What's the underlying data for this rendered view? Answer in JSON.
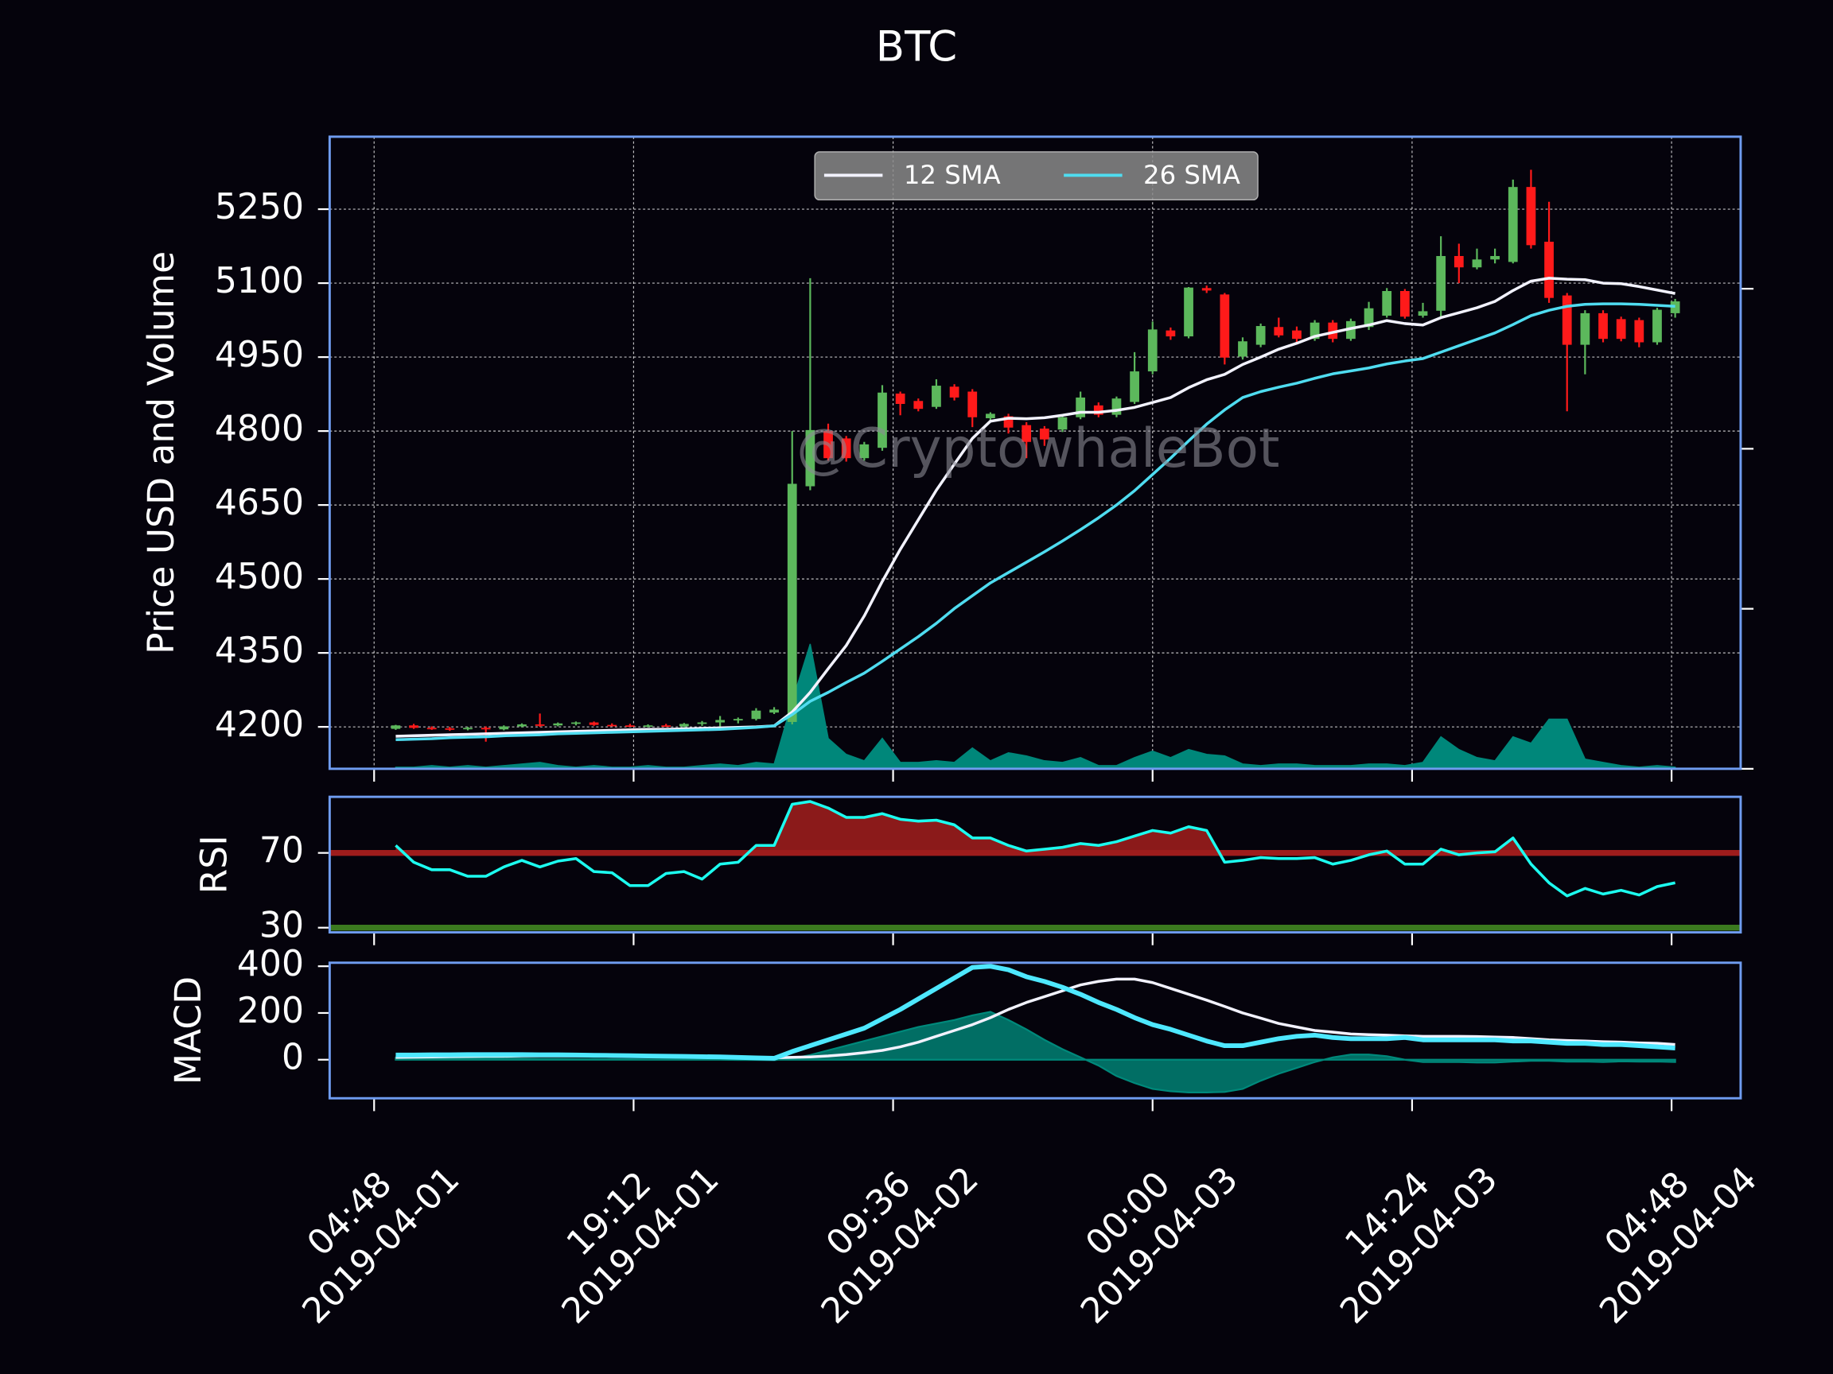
{
  "chart_data": [
    {
      "type": "candlestick",
      "title": "BTC",
      "ylabel": "Price USD and Volume",
      "watermark": "@CryptowhaleBot",
      "x": [
        "2019-04-01 06:00",
        "2019-04-01 07:00",
        "2019-04-01 08:00",
        "2019-04-01 09:00",
        "2019-04-01 10:00",
        "2019-04-01 11:00",
        "2019-04-01 12:00",
        "2019-04-01 13:00",
        "2019-04-01 14:00",
        "2019-04-01 15:00",
        "2019-04-01 16:00",
        "2019-04-01 17:00",
        "2019-04-01 18:00",
        "2019-04-01 19:00",
        "2019-04-01 20:00",
        "2019-04-01 21:00",
        "2019-04-01 22:00",
        "2019-04-01 23:00",
        "2019-04-02 00:00",
        "2019-04-02 01:00",
        "2019-04-02 02:00",
        "2019-04-02 03:00",
        "2019-04-02 04:00",
        "2019-04-02 05:00",
        "2019-04-02 06:00",
        "2019-04-02 07:00",
        "2019-04-02 08:00",
        "2019-04-02 09:00",
        "2019-04-02 10:00",
        "2019-04-02 11:00",
        "2019-04-02 12:00",
        "2019-04-02 13:00",
        "2019-04-02 14:00",
        "2019-04-02 15:00",
        "2019-04-02 16:00",
        "2019-04-02 17:00",
        "2019-04-02 18:00",
        "2019-04-02 19:00",
        "2019-04-02 20:00",
        "2019-04-02 21:00",
        "2019-04-02 22:00",
        "2019-04-02 23:00",
        "2019-04-03 00:00",
        "2019-04-03 01:00",
        "2019-04-03 02:00",
        "2019-04-03 03:00",
        "2019-04-03 04:00",
        "2019-04-03 05:00",
        "2019-04-03 06:00",
        "2019-04-03 07:00",
        "2019-04-03 08:00",
        "2019-04-03 09:00",
        "2019-04-03 10:00",
        "2019-04-03 11:00",
        "2019-04-03 12:00",
        "2019-04-03 13:00",
        "2019-04-03 14:00",
        "2019-04-03 15:00",
        "2019-04-03 16:00",
        "2019-04-03 17:00",
        "2019-04-03 18:00",
        "2019-04-03 19:00",
        "2019-04-03 20:00",
        "2019-04-03 21:00",
        "2019-04-03 22:00",
        "2019-04-03 23:00",
        "2019-04-04 00:00",
        "2019-04-04 01:00",
        "2019-04-04 02:00",
        "2019-04-04 03:00",
        "2019-04-04 04:00",
        "2019-04-04 05:00"
      ],
      "open": [
        4196,
        4203,
        4198,
        4197,
        4196,
        4198,
        4195,
        4201,
        4205,
        4203,
        4207,
        4209,
        4204,
        4203,
        4202,
        4203,
        4201,
        4206,
        4209,
        4214,
        4216,
        4229,
        4210,
        4688,
        4800,
        4785,
        4745,
        4766,
        4876,
        4861,
        4849,
        4890,
        4880,
        4826,
        4830,
        4812,
        4805,
        4803,
        4828,
        4852,
        4833,
        4859,
        4921,
        5004,
        4992,
        5090,
        5077,
        4951,
        4975,
        5011,
        5004,
        4987,
        5020,
        4987,
        5011,
        5034,
        5084,
        5034,
        5044,
        5155,
        5132,
        5148,
        5143,
        5295,
        5184,
        5075,
        4975,
        5039,
        5027,
        5025,
        4980,
        5039
      ],
      "high": [
        4204,
        4206,
        4201,
        4200,
        4200,
        4201,
        4203,
        4207,
        4227,
        4209,
        4211,
        4211,
        4207,
        4206,
        4205,
        4206,
        4208,
        4212,
        4222,
        4219,
        4238,
        4240,
        4800,
        5110,
        4815,
        4790,
        4778,
        4893,
        4880,
        4866,
        4905,
        4895,
        4885,
        4838,
        4835,
        4818,
        4810,
        4832,
        4880,
        4858,
        4870,
        4960,
        5022,
        5010,
        5092,
        5095,
        5080,
        4990,
        5018,
        5030,
        5012,
        5025,
        5025,
        5028,
        5062,
        5090,
        5088,
        5060,
        5195,
        5180,
        5170,
        5170,
        5310,
        5330,
        5265,
        5080,
        5045,
        5045,
        5032,
        5030,
        5050,
        5068
      ],
      "low": [
        4194,
        4196,
        4194,
        4192,
        4193,
        4170,
        4193,
        4199,
        4200,
        4201,
        4203,
        4202,
        4201,
        4200,
        4199,
        4200,
        4199,
        4202,
        4200,
        4207,
        4213,
        4226,
        4205,
        4680,
        4740,
        4738,
        4740,
        4760,
        4832,
        4840,
        4845,
        4862,
        4808,
        4820,
        4795,
        4745,
        4770,
        4798,
        4824,
        4828,
        4828,
        4855,
        4915,
        4985,
        4988,
        5080,
        4935,
        4945,
        4970,
        4990,
        4980,
        4983,
        4980,
        4983,
        5005,
        5030,
        5028,
        5030,
        5030,
        5100,
        5128,
        5140,
        5140,
        5170,
        5060,
        4840,
        4915,
        4980,
        4982,
        4970,
        4975,
        5030
      ],
      "close": [
        4203,
        4198,
        4197,
        4196,
        4198,
        4195,
        4201,
        4205,
        4203,
        4207,
        4209,
        4204,
        4203,
        4202,
        4203,
        4201,
        4206,
        4209,
        4214,
        4216,
        4233,
        4235,
        4693,
        4802,
        4745,
        4745,
        4773,
        4878,
        4855,
        4845,
        4892,
        4868,
        4828,
        4835,
        4807,
        4778,
        4783,
        4828,
        4868,
        4833,
        4866,
        4921,
        5006,
        4992,
        5091,
        5085,
        4949,
        4982,
        5013,
        4994,
        4987,
        5020,
        4987,
        5023,
        5049,
        5084,
        5032,
        5043,
        5155,
        5132,
        5148,
        5155,
        5295,
        5177,
        5070,
        4975,
        5039,
        4987,
        4987,
        4980,
        5046,
        5063
      ],
      "up_color": "#5cb85c",
      "down_color": "#ff1a1a",
      "series": [
        {
          "name": "12 SMA",
          "color": "#f2f2ff",
          "values": [
            4181,
            4182,
            4183,
            4184,
            4185,
            4186,
            4187,
            4188,
            4189,
            4190,
            4191,
            4192,
            4193,
            4194,
            4195,
            4195,
            4196,
            4197,
            4198,
            4199,
            4200,
            4202,
            4230,
            4270,
            4318,
            4365,
            4425,
            4495,
            4560,
            4620,
            4680,
            4733,
            4785,
            4820,
            4826,
            4825,
            4827,
            4832,
            4838,
            4838,
            4842,
            4848,
            4858,
            4868,
            4888,
            4904,
            4915,
            4935,
            4950,
            4966,
            4978,
            4992,
            5000,
            5008,
            5015,
            5024,
            5018,
            5015,
            5030,
            5040,
            5050,
            5063,
            5085,
            5104,
            5110,
            5108,
            5107,
            5100,
            5099,
            5093,
            5086,
            5079
          ]
        },
        {
          "name": "26 SMA",
          "color": "#4fdcf0",
          "values": [
            4174,
            4175,
            4176,
            4178,
            4179,
            4180,
            4182,
            4183,
            4184,
            4186,
            4187,
            4188,
            4189,
            4190,
            4191,
            4192,
            4193,
            4194,
            4195,
            4197,
            4199,
            4202,
            4225,
            4252,
            4270,
            4290,
            4309,
            4333,
            4358,
            4383,
            4410,
            4440,
            4466,
            4492,
            4513,
            4534,
            4555,
            4577,
            4600,
            4624,
            4650,
            4679,
            4712,
            4745,
            4780,
            4814,
            4843,
            4868,
            4880,
            4889,
            4897,
            4907,
            4916,
            4922,
            4928,
            4936,
            4942,
            4947,
            4960,
            4973,
            4986,
            4999,
            5016,
            5034,
            5045,
            5053,
            5057,
            5058,
            5058,
            5057,
            5055,
            5053
          ]
        },
        {
          "color": "#00877a",
          "axis": "y2",
          "fill": true,
          "values": [
            0.01,
            0.01,
            0.02,
            0.01,
            0.02,
            0.01,
            0.02,
            0.03,
            0.04,
            0.02,
            0.01,
            0.02,
            0.01,
            0.01,
            0.02,
            0.01,
            0.01,
            0.02,
            0.03,
            0.02,
            0.04,
            0.03,
            0.42,
            0.78,
            0.19,
            0.09,
            0.05,
            0.19,
            0.04,
            0.04,
            0.05,
            0.04,
            0.13,
            0.05,
            0.1,
            0.08,
            0.05,
            0.04,
            0.07,
            0.02,
            0.02,
            0.07,
            0.11,
            0.07,
            0.12,
            0.09,
            0.08,
            0.03,
            0.02,
            0.03,
            0.03,
            0.02,
            0.02,
            0.02,
            0.03,
            0.03,
            0.02,
            0.04,
            0.2,
            0.12,
            0.07,
            0.05,
            0.2,
            0.16,
            0.31,
            0.31,
            0.06,
            0.04,
            0.02,
            0.01,
            0.02,
            0.01
          ]
        }
      ],
      "ylim": [
        4115,
        5397
      ],
      "yticks": [
        4200,
        4350,
        4500,
        4650,
        4800,
        4950,
        5100,
        5250
      ],
      "y2lim": [
        0,
        3.95
      ],
      "y2ticks": [
        0,
        1,
        2,
        3
      ],
      "xlim": [
        "2019-04-01 02:20",
        "2019-04-04 08:38"
      ],
      "xticks": [
        {
          "value": "2019-04-01 04:48",
          "label": "04:48\n2019-04-01"
        },
        {
          "value": "2019-04-01 19:12",
          "label": "19:12\n2019-04-01"
        },
        {
          "value": "2019-04-02 09:36",
          "label": "09:36\n2019-04-02"
        },
        {
          "value": "2019-04-03 00:00",
          "label": "00:00\n2019-04-03"
        },
        {
          "value": "2019-04-03 14:24",
          "label": "14:24\n2019-04-03"
        },
        {
          "value": "2019-04-04 04:48",
          "label": "04:48\n2019-04-04"
        }
      ],
      "grid": true,
      "legend": "upper center"
    },
    {
      "type": "line",
      "ylabel": "RSI",
      "ylim": [
        27.5,
        100
      ],
      "yticks": [
        30,
        70
      ],
      "levels": [
        {
          "value": 70,
          "color": "#9e1c1c",
          "fill": "#8b1a1a"
        },
        {
          "value": 30,
          "color": "#3b7a1f"
        }
      ],
      "series": [
        {
          "color": "#1cfff0",
          "values": [
            74,
            65,
            61,
            61,
            57.5,
            57.5,
            62.5,
            66,
            62.5,
            65.6,
            67,
            60,
            59.4,
            52.5,
            52.5,
            59,
            60,
            56,
            64,
            65,
            74,
            74,
            96,
            97.5,
            94,
            89,
            89,
            91,
            88,
            87,
            87.5,
            85,
            78,
            78,
            74,
            71,
            72,
            73,
            75,
            74,
            76,
            79,
            82,
            80.6,
            84,
            82,
            65,
            66,
            67.5,
            67,
            67,
            67.5,
            64,
            66,
            69,
            71,
            64,
            64,
            72,
            69,
            70,
            70.6,
            78,
            64,
            54,
            47,
            51,
            48,
            50,
            47.5,
            52,
            54
          ]
        }
      ]
    },
    {
      "type": "line",
      "ylabel": "MACD",
      "ylim": [
        -165,
        415
      ],
      "yticks": [
        0,
        200,
        400
      ],
      "series": [
        {
          "color": "#00897b",
          "fill": true,
          "values": [
            8,
            8,
            7,
            7,
            6,
            6,
            5,
            5,
            4,
            4,
            3,
            3,
            2,
            2,
            1,
            1,
            0,
            0,
            0,
            -1,
            -1,
            -2,
            5,
            20,
            40,
            60,
            80,
            100,
            120,
            140,
            155,
            170,
            190,
            205,
            170,
            130,
            85,
            45,
            10,
            -25,
            -70,
            -100,
            -125,
            -135,
            -140,
            -140,
            -138,
            -125,
            -90,
            -60,
            -35,
            -10,
            10,
            22,
            22,
            15,
            0,
            -10,
            -10,
            -10,
            -12,
            -12,
            -8,
            -5,
            -5,
            -8,
            -8,
            -10,
            -7,
            -8,
            -8,
            -10
          ]
        },
        {
          "color": "#f2f2ff",
          "values": [
            10,
            11,
            12,
            13,
            14,
            15,
            15,
            16,
            16,
            16,
            16,
            16,
            15,
            15,
            14,
            14,
            13,
            12,
            11,
            10,
            9,
            8,
            10,
            12,
            16,
            22,
            30,
            40,
            55,
            75,
            100,
            125,
            150,
            180,
            215,
            245,
            270,
            295,
            320,
            335,
            345,
            345,
            330,
            305,
            280,
            255,
            228,
            200,
            178,
            155,
            140,
            125,
            118,
            110,
            107,
            105,
            102,
            100,
            100,
            100,
            99,
            97,
            95,
            90,
            85,
            82,
            80,
            77,
            75,
            72,
            70,
            65
          ]
        },
        {
          "color": "#4ee8ff",
          "width": 4,
          "values": [
            20,
            20,
            21,
            21,
            22,
            22,
            22,
            22,
            21,
            21,
            20,
            19,
            18,
            17,
            16,
            15,
            14,
            13,
            12,
            10,
            8,
            6,
            35,
            60,
            85,
            110,
            135,
            175,
            215,
            260,
            305,
            350,
            395,
            400,
            385,
            355,
            335,
            310,
            280,
            245,
            215,
            180,
            150,
            130,
            105,
            80,
            60,
            60,
            75,
            90,
            100,
            105,
            95,
            90,
            90,
            90,
            95,
            85,
            85,
            85,
            85,
            85,
            80,
            80,
            75,
            70,
            70,
            65,
            65,
            60,
            55,
            50
          ]
        }
      ]
    }
  ]
}
